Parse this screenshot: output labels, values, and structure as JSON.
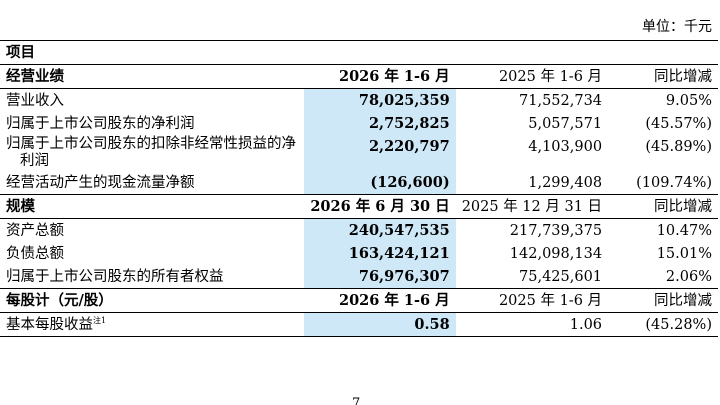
{
  "unit_label": "单位：千元",
  "item_header": "项目",
  "sections": {
    "operating": {
      "label": "经营业绩",
      "col_current": "2026 年 1-6 月",
      "col_prior": "2025 年 1-6 月",
      "col_change": "同比增减",
      "rows": [
        {
          "label": "营业收入",
          "current": "78,025,359",
          "prior": "71,552,734",
          "change": "9.05%"
        },
        {
          "label": "归属于上市公司股东的净利润",
          "current": "2,752,825",
          "prior": "5,057,571",
          "change": "(45.57%)"
        },
        {
          "label": "归属于上市公司股东的扣除非经常性损益的净",
          "label2": "利润",
          "current": "2,220,797",
          "prior": "4,103,900",
          "change": "(45.89%)"
        },
        {
          "label": "经营活动产生的现金流量净额",
          "current": "(126,600)",
          "prior": "1,299,408",
          "change": "(109.74%)"
        }
      ]
    },
    "scale": {
      "label": "规模",
      "col_current": "2026 年 6 月 30 日",
      "col_prior": "2025 年 12 月 31 日",
      "col_change": "同比增减",
      "rows": [
        {
          "label": "资产总额",
          "current": "240,547,535",
          "prior": "217,739,375",
          "change": "10.47%"
        },
        {
          "label": "负债总额",
          "current": "163,424,121",
          "prior": "142,098,134",
          "change": "15.01%"
        },
        {
          "label": "归属于上市公司股东的所有者权益",
          "current": "76,976,307",
          "prior": "75,425,601",
          "change": "2.06%"
        }
      ]
    },
    "per_share": {
      "label": "每股计（元/股）",
      "col_current": "2026 年 1-6 月",
      "col_prior": "2025 年 1-6 月",
      "col_change": "同比增减",
      "rows": [
        {
          "label": "基本每股收益",
          "note": "注1",
          "current": "0.58",
          "prior": "1.06",
          "change": "(45.28%)"
        }
      ]
    }
  },
  "page_number": "7"
}
